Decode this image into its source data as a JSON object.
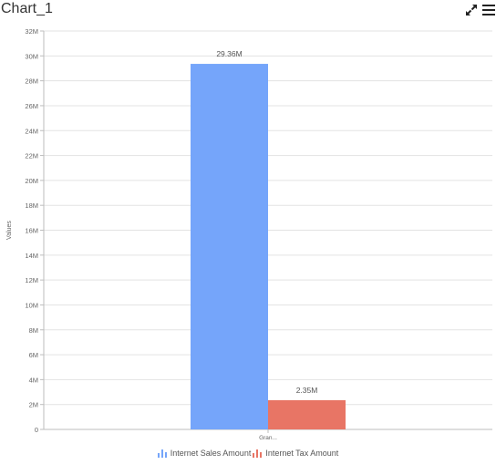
{
  "header": {
    "title": "Chart_1",
    "icons": [
      "expand-icon",
      "menu-icon"
    ]
  },
  "colors": {
    "sales": "#75a5fa",
    "tax": "#e87565",
    "grid": "#e3e3e3",
    "axis": "#bdbdbd",
    "text": "#666666"
  },
  "chart_data": {
    "type": "bar",
    "ylabel": "Values",
    "xlabel": "",
    "categories": [
      "Gran..."
    ],
    "series": [
      {
        "name": "Internet Sales Amount",
        "values": [
          29.36
        ],
        "label": "29.36M"
      },
      {
        "name": "Internet Tax Amount",
        "values": [
          2.35
        ],
        "label": "2.35M"
      }
    ],
    "ylim": [
      0,
      32
    ],
    "yticks": [
      "0",
      "2M",
      "4M",
      "6M",
      "8M",
      "10M",
      "12M",
      "14M",
      "16M",
      "18M",
      "20M",
      "22M",
      "24M",
      "26M",
      "28M",
      "30M",
      "32M"
    ],
    "grid": true,
    "legend": "bottom-center"
  }
}
